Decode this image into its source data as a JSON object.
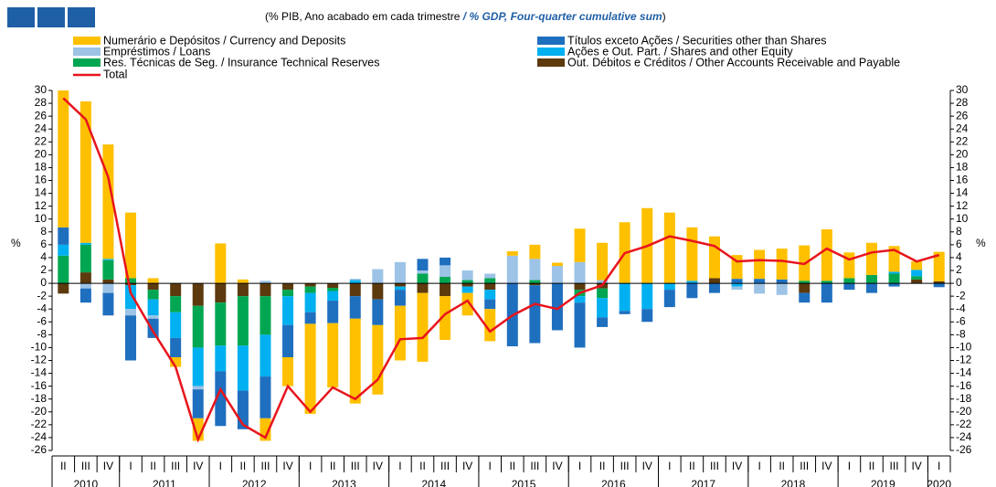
{
  "chart_data": {
    "type": "bar",
    "stacked": true,
    "subtitle": [
      "(% PIB, Ano acabado em cada trimestre ",
      "/ % GDP, Four-quarter cumulative sum",
      ")"
    ],
    "y_label": "%",
    "categories": [
      "II",
      "III",
      "IV",
      "I",
      "II",
      "III",
      "IV",
      "I",
      "II",
      "III",
      "IV",
      "I",
      "II",
      "III",
      "IV",
      "I",
      "II",
      "III",
      "IV",
      "I",
      "II",
      "III",
      "IV",
      "I",
      "II",
      "III",
      "IV",
      "I",
      "II",
      "III",
      "IV",
      "I",
      "II",
      "III",
      "IV",
      "I",
      "II",
      "III",
      "IV",
      "I"
    ],
    "year_labels": [
      "2010",
      "2011",
      "2012",
      "2013",
      "2014",
      "2015",
      "2016",
      "2017",
      "2018",
      "2019",
      "2020"
    ],
    "series": [
      {
        "name": "Numerário e Depósitos / Currency and Deposits",
        "color": "#ffc000",
        "values": [
          21.3,
          22,
          17.8,
          10.2,
          0.8,
          -1.5,
          -3.5,
          6.2,
          0.6,
          -3.5,
          -4.5,
          -14,
          -10,
          -13.2,
          -10.8,
          -8.5,
          -10.7,
          -6.8,
          -3.5,
          -5,
          0.7,
          2.2,
          0.5,
          5.2,
          5.8,
          9.5,
          11.7,
          11,
          8.3,
          6.5,
          3.7,
          4.5,
          4.8,
          5.5,
          8,
          4,
          5,
          4,
          1.3,
          4.6
        ]
      },
      {
        "name": "Títulos exceto Ações / Securities other than Shares",
        "color": "#1f6fbf",
        "values": [
          2.7,
          -2.2,
          -3.5,
          -7,
          -3,
          -3,
          -4.5,
          -8.5,
          -6,
          -6.5,
          -5,
          -1.8,
          -3.5,
          -3.5,
          -4,
          -2.5,
          1.8,
          1.2,
          0,
          -1.5,
          -9.8,
          -9,
          -7.3,
          -7,
          -1.5,
          -0.5,
          -2,
          -2.7,
          -2.3,
          -1.5,
          0.7,
          0.7,
          0.6,
          -1.5,
          -3,
          -1,
          -1.5,
          -0.5,
          0,
          -0.6
        ]
      },
      {
        "name": "Empréstimos / Loans",
        "color": "#9dc3e6",
        "values": [
          0,
          -0.8,
          -1.5,
          -1,
          -0.5,
          0,
          -0.5,
          0,
          0,
          0.4,
          0,
          0,
          0,
          0.2,
          2.2,
          3.3,
          0.5,
          1.8,
          1.5,
          0.7,
          4.3,
          3.3,
          2.7,
          3.3,
          0.5,
          0,
          0,
          0,
          0,
          0,
          -0.5,
          -1.6,
          -1.8,
          0,
          0,
          0,
          0,
          0,
          0,
          0
        ]
      },
      {
        "name": "Ações e Out. Part. / Shares and other Equity",
        "color": "#00b0f0",
        "values": [
          1.7,
          0.3,
          0.2,
          -3.7,
          -2.5,
          -4,
          -6,
          -4,
          -7,
          -6.5,
          -4.5,
          -3,
          -1.5,
          0.5,
          0,
          -0.5,
          0,
          0,
          -1,
          -1.5,
          0,
          0,
          0,
          -1,
          -3,
          -4.3,
          -4,
          -1,
          0.4,
          0,
          -0.5,
          0,
          0,
          0,
          0,
          0,
          0,
          0.3,
          1,
          0
        ]
      },
      {
        "name": "Res. Técnicas de Seg. / Insurance Technical Reserves",
        "color": "#00a651",
        "values": [
          4.3,
          4.3,
          3,
          0.8,
          -1.5,
          -2.5,
          -6.5,
          -6.7,
          -7.7,
          -6,
          -1,
          -1,
          -0.5,
          0,
          0,
          0,
          1.5,
          1,
          0.5,
          0.8,
          0,
          0.5,
          0,
          -1,
          -1.5,
          0,
          0,
          0,
          0,
          0,
          0,
          0,
          0,
          0.4,
          0.4,
          0.8,
          1.3,
          1.5,
          0.5,
          0
        ]
      },
      {
        "name": "Out. Débitos e Créditos / Other Accounts Receivable and Payable",
        "color": "#5c3a0e",
        "values": [
          -1.6,
          1.7,
          0.6,
          -0.3,
          -1,
          -2,
          -3.5,
          -3,
          -2,
          -2,
          -1,
          -0.5,
          -0.7,
          -2,
          -2.5,
          -0.5,
          -1.5,
          -2,
          -0.5,
          -1,
          0,
          -0.3,
          0,
          -1,
          -0.8,
          0,
          0,
          0,
          0,
          0.8,
          0,
          0,
          0,
          -1.5,
          0,
          0,
          0,
          0,
          0.6,
          0.3
        ]
      }
    ],
    "line": {
      "name": "Total",
      "color": "#e8141c",
      "values": [
        28.8,
        25.5,
        16.5,
        -1.5,
        -7.5,
        -13,
        -24.3,
        -16.5,
        -22,
        -24,
        -16,
        -20,
        -16.2,
        -18,
        -15,
        -8.7,
        -8.5,
        -4.8,
        -2.7,
        -7.5,
        -5,
        -3.2,
        -4,
        -1.5,
        -0.3,
        4.7,
        5.8,
        7.3,
        6.6,
        5.8,
        3.4,
        3.6,
        3.5,
        3,
        5.4,
        3.7,
        4.8,
        5.2,
        3.4,
        4.4
      ]
    },
    "ylim": [
      -26,
      30
    ],
    "yticks": [
      -26,
      -24,
      -22,
      -20,
      -18,
      -16,
      -14,
      -12,
      -10,
      -8,
      -6,
      -4,
      -2,
      0,
      2,
      4,
      6,
      8,
      10,
      12,
      14,
      16,
      18,
      20,
      22,
      24,
      26,
      28,
      30
    ]
  }
}
